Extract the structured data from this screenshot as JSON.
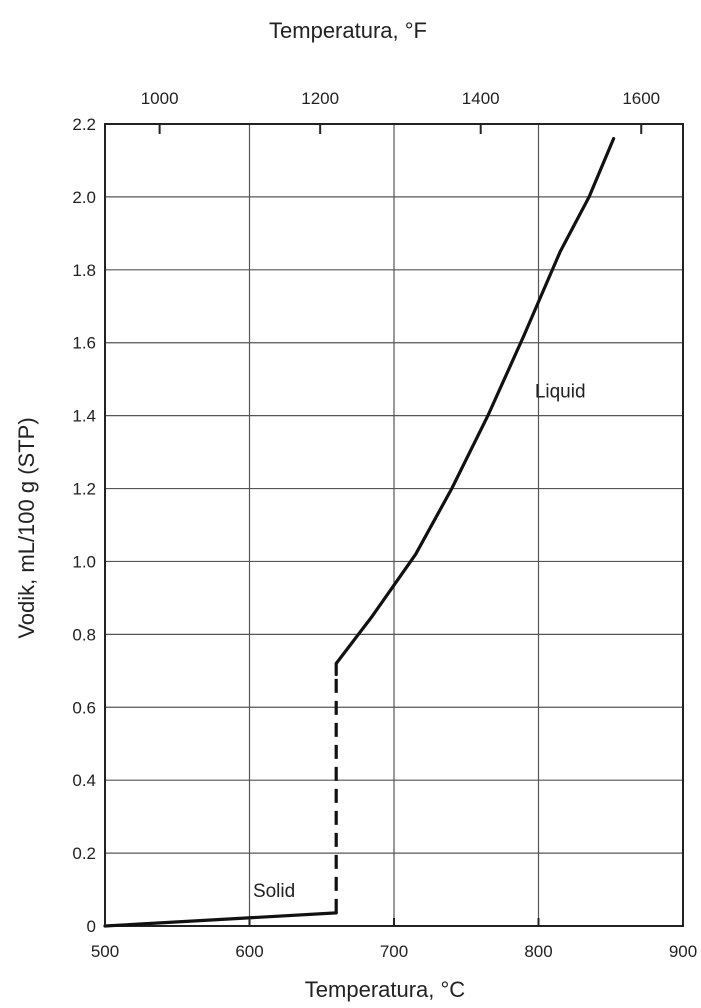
{
  "chart_data": {
    "type": "line",
    "title": "",
    "xlabel": "Temperatura, °C",
    "x2label": "Temperatura, °F",
    "ylabel": "Vodik, mL/100 g (STP)",
    "xlim": [
      500,
      900
    ],
    "ylim": [
      0,
      2.2
    ],
    "x_ticks": [
      "500",
      "600",
      "700",
      "800",
      "900"
    ],
    "x_tick_values": [
      500,
      600,
      700,
      800,
      900
    ],
    "x2_ticks": [
      "1000",
      "1200",
      "1400",
      "1600"
    ],
    "x2_tick_values_c": [
      537.8,
      648.9,
      760,
      871.1
    ],
    "y_ticks": [
      "0",
      "0.2",
      "0.4",
      "0.6",
      "0.8",
      "1.0",
      "1.2",
      "1.4",
      "1.6",
      "1.8",
      "2.0",
      "2.2"
    ],
    "y_tick_values": [
      0,
      0.2,
      0.4,
      0.6,
      0.8,
      1.0,
      1.2,
      1.4,
      1.6,
      1.8,
      2.0,
      2.2
    ],
    "grid": true,
    "series": [
      {
        "name": "Solid",
        "style": "solid",
        "x": [
          500,
          660
        ],
        "y": [
          0.0,
          0.036
        ]
      },
      {
        "name": "",
        "style": "dashed",
        "x": [
          660,
          660
        ],
        "y": [
          0.036,
          0.69
        ]
      },
      {
        "name": "Liquid",
        "style": "solid",
        "x": [
          660,
          660,
          685,
          715,
          740,
          765,
          790,
          815,
          835,
          852
        ],
        "y": [
          0.69,
          0.72,
          0.85,
          1.02,
          1.2,
          1.4,
          1.62,
          1.85,
          2.0,
          2.16
        ]
      }
    ],
    "annotations": [
      {
        "text": "Solid",
        "x": 617,
        "y": 0.08
      },
      {
        "text": "Liquid",
        "x": 815,
        "y": 1.45
      }
    ]
  }
}
